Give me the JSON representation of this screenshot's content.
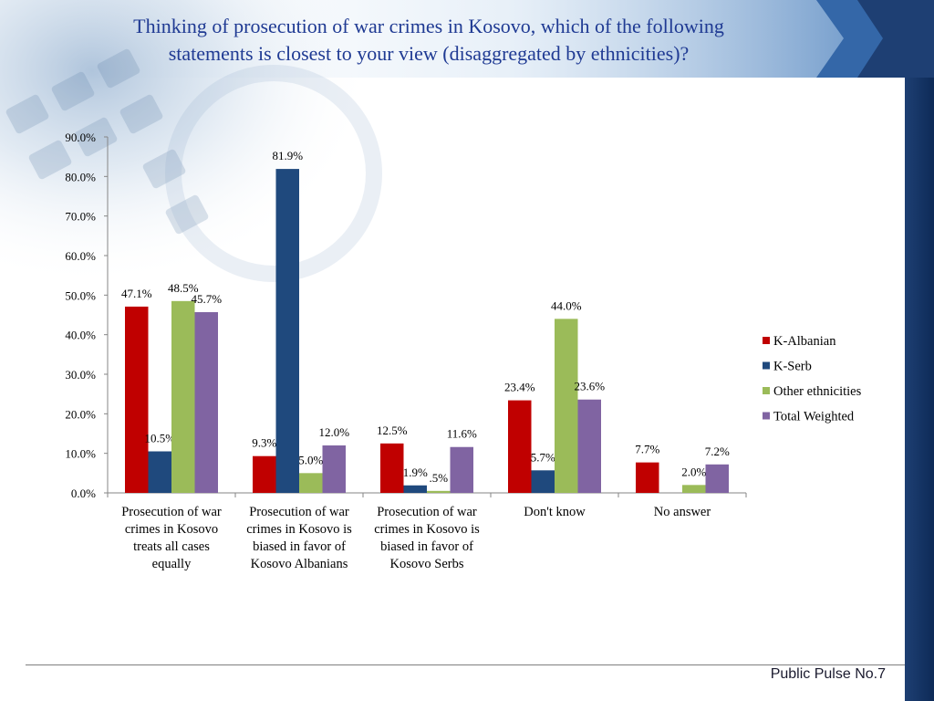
{
  "slide": {
    "title_line1": "Thinking of prosecution of war crimes in Kosovo, which of the following",
    "title_line2": "statements is closest to your view (disaggregated by ethnicities)?",
    "footer": "Public Pulse No.7"
  },
  "colors": {
    "title": "#1f3a93",
    "band_dark": "#1e3f73",
    "band_mid": "#3467a8"
  },
  "chart_data": {
    "type": "bar",
    "categories": [
      [
        "Prosecution of war",
        "crimes in Kosovo",
        "treats all cases",
        "equally"
      ],
      [
        "Prosecution of war",
        "crimes in Kosovo is",
        "biased in favor of",
        "Kosovo Albanians"
      ],
      [
        "Prosecution of war",
        "crimes in Kosovo is",
        "biased in favor of",
        "Kosovo Serbs"
      ],
      [
        "Don't know"
      ],
      [
        "No answer"
      ]
    ],
    "series": [
      {
        "name": "K-Albanian",
        "color": "#c00000",
        "values": [
          47.1,
          9.3,
          12.5,
          23.4,
          7.7
        ],
        "labels": [
          "47.1%",
          "9.3%",
          "12.5%",
          "23.4%",
          "7.7%"
        ]
      },
      {
        "name": "K-Serb",
        "color": "#1f497d",
        "values": [
          10.5,
          81.9,
          1.9,
          5.7,
          0
        ],
        "labels": [
          "10.5%",
          "81.9%",
          "1.9%",
          "5.7%",
          ""
        ]
      },
      {
        "name": "Other ethnicities",
        "color": "#9bbb59",
        "values": [
          48.5,
          5.0,
          0.5,
          44.0,
          2.0
        ],
        "labels": [
          "48.5%",
          "5.0%",
          ".5%",
          "44.0%",
          "2.0%"
        ]
      },
      {
        "name": "Total Weighted",
        "color": "#8064a2",
        "values": [
          45.7,
          12.0,
          11.6,
          23.6,
          7.2
        ],
        "labels": [
          "45.7%",
          "12.0%",
          "11.6%",
          "23.6%",
          "7.2%"
        ]
      }
    ],
    "y_ticks": [
      "0.0%",
      "10.0%",
      "20.0%",
      "30.0%",
      "40.0%",
      "50.0%",
      "60.0%",
      "70.0%",
      "80.0%",
      "90.0%"
    ],
    "ylim": [
      0,
      90
    ],
    "legend_position": "right",
    "grid": false
  }
}
